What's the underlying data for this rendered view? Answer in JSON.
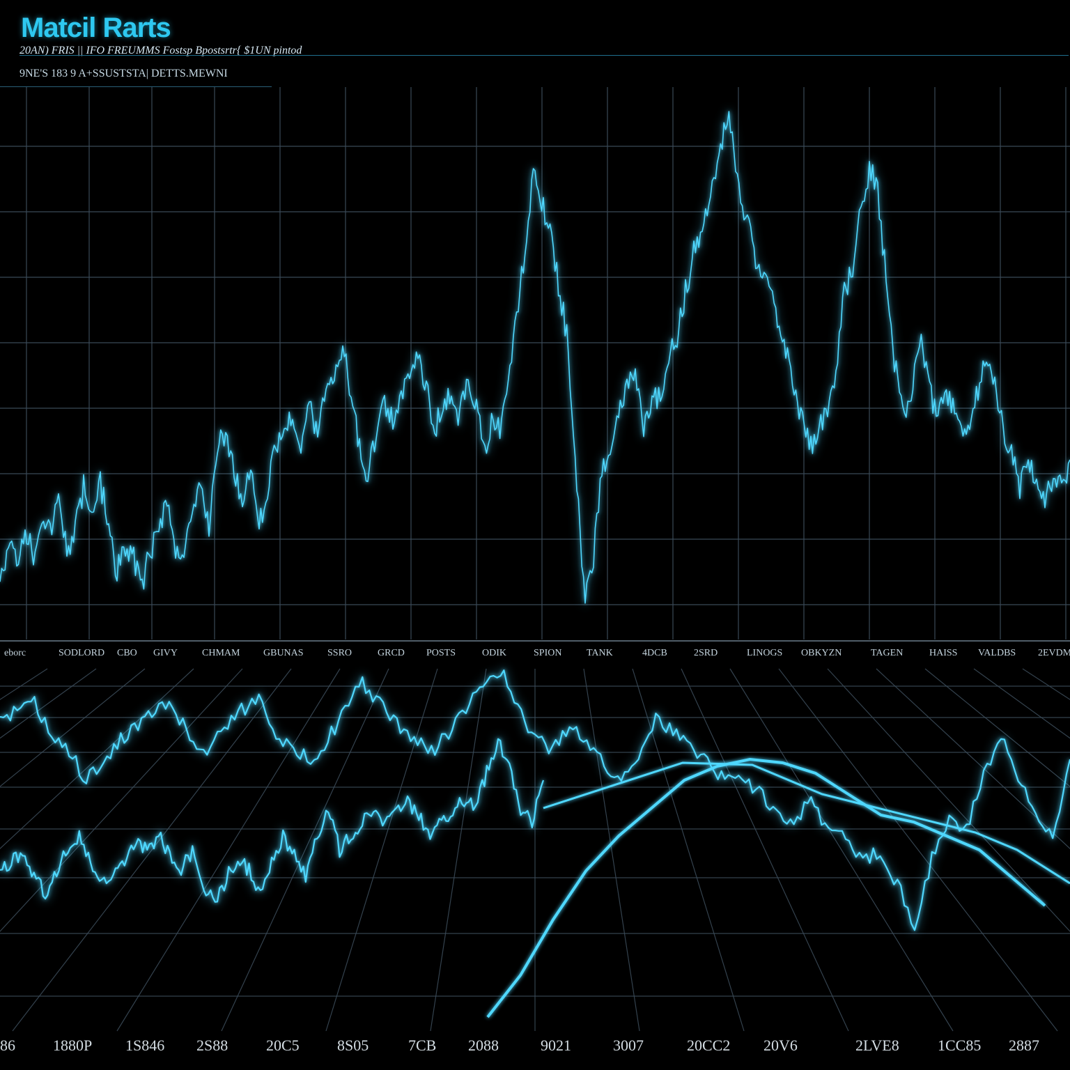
{
  "header": {
    "title": "Matcil Rarts",
    "subtitle": "20AN) FRIS || IFO FREUMMS Fostsp Bpostsrtr{ $1UN pintod",
    "subtitle2": "9NE'S 183 9 A+SSUSTSTA| DETTS.MEWNI"
  },
  "colors": {
    "background": "#000000",
    "line": "#4fd8ff",
    "grid": "#3a4a57",
    "accent": "#2ec8f0"
  },
  "chart_data": [
    {
      "type": "line",
      "panel": "top",
      "grid": true,
      "x_tick_labels": [
        "eborc",
        "SODLORD",
        "CBO",
        "GIVY",
        "CHMAM",
        "GBUNAS",
        "SSRO",
        "GRCD",
        "POSTS",
        "ODIK",
        "SPION",
        "TANK",
        "4DCB",
        "2SRD",
        "LINOGS",
        "OBKYZN",
        "TAGEN",
        "HAISS",
        "VALDBS",
        "2EVDM"
      ],
      "series": [
        {
          "values": [
            830,
            780,
            810,
            760,
            800,
            740,
            770,
            720,
            790,
            760,
            700,
            740,
            690,
            760,
            820,
            780,
            800,
            840,
            790,
            760,
            720,
            800,
            790,
            750,
            700,
            760,
            640,
            620,
            680,
            720,
            660,
            760,
            700,
            640,
            620,
            600,
            640,
            580,
            620,
            560,
            540,
            500,
            560,
            640,
            680,
            620,
            580,
            600,
            560,
            540,
            500,
            560,
            620,
            580,
            560,
            600,
            540,
            580,
            640,
            600,
            620,
            520,
            440,
            330,
            240,
            300,
            350,
            420,
            500,
            700,
            860,
            800,
            680,
            640,
            600,
            560,
            540,
            620,
            580,
            560,
            520,
            480,
            420,
            360,
            330,
            280,
            220,
            160,
            240,
            300,
            350,
            400,
            420,
            460,
            500,
            560,
            600,
            640,
            620,
            580,
            540,
            420,
            380,
            300,
            240,
            270,
            400,
            520,
            600,
            560,
            480,
            540,
            600,
            560,
            580,
            620,
            600,
            560,
            520,
            560,
            620,
            650,
            700,
            660,
            690,
            720,
            680,
            700,
            660
          ]
        }
      ]
    },
    {
      "type": "line",
      "panel": "bottom",
      "grid": true,
      "x_tick_labels": [
        "86",
        "1880P",
        "1S846",
        "2S88",
        "20C5",
        "8S05",
        "7CB",
        "2088",
        "9021",
        "3007",
        "20CC2",
        "20V6",
        "2LVE8",
        "1CC85",
        "2887"
      ],
      "series": [
        {
          "values": [
            1040,
            1020,
            1010,
            1060,
            1080,
            1120,
            1100,
            1060,
            1040,
            1020,
            1010,
            1060,
            1080,
            1040,
            1020,
            1000,
            1050,
            1080,
            1090,
            1060,
            1020,
            980,
            1010,
            1040,
            1060,
            1080,
            1050,
            1020,
            980,
            960,
            1020,
            1060,
            1080,
            1040,
            1060,
            1100,
            1120,
            1080,
            1030,
            1050,
            1070,
            1090,
            1120,
            1110,
            1140,
            1160,
            1180,
            1150,
            1190,
            1200,
            1240,
            1220,
            1270,
            1330,
            1230,
            1180,
            1190,
            1110,
            1060,
            1120,
            1170,
            1200,
            1090
          ]
        },
        {
          "values": [
            1250,
            1240,
            1220,
            1260,
            1280,
            1250,
            1220,
            1200,
            1240,
            1270,
            1260,
            1240,
            1210,
            1220,
            1200,
            1230,
            1250,
            1220,
            1270,
            1300,
            1260,
            1230,
            1250,
            1280,
            1240,
            1200,
            1230,
            1260,
            1200,
            1160,
            1220,
            1200,
            1180,
            1160,
            1180,
            1170,
            1150,
            1170,
            1200,
            1180,
            1160,
            1150,
            1160,
            1110,
            1060,
            1100,
            1160,
            1180,
            1120
          ]
        },
        {
          "values": [
            1460,
            1400,
            1320,
            1250,
            1200,
            1160,
            1120,
            1100,
            1090,
            1095,
            1110,
            1140,
            1170,
            1180,
            1200,
            1220,
            1260,
            1300
          ]
        }
      ]
    }
  ]
}
